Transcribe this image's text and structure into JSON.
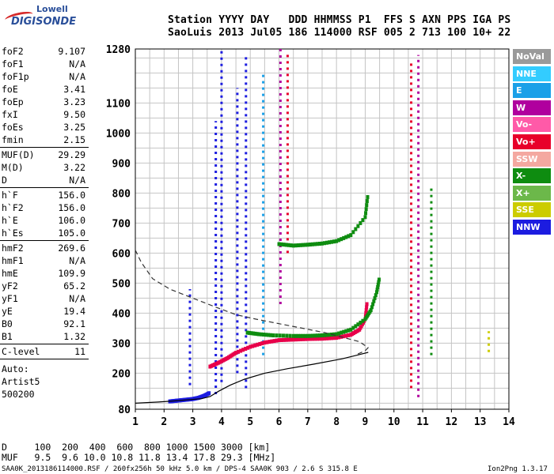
{
  "logo": {
    "line1": "Lowell",
    "line2": "DIGISONDE"
  },
  "header": {
    "line1": "Station YYYY DAY   DDD HHMMSS P1  FFS S AXN PPS IGA PS",
    "line2": "SaoLuis 2013 Jul05 186 114000 RSF 005 2 713 100 10+ 22"
  },
  "params": {
    "group1": [
      {
        "k": "foF2",
        "v": "9.107"
      },
      {
        "k": "foF1",
        "v": "N/A"
      },
      {
        "k": "foF1p",
        "v": "N/A"
      },
      {
        "k": "foE",
        "v": "3.41"
      },
      {
        "k": "foEp",
        "v": "3.23"
      },
      {
        "k": "fxI",
        "v": "9.50"
      },
      {
        "k": "foEs",
        "v": "3.25"
      },
      {
        "k": "fmin",
        "v": "2.15"
      }
    ],
    "group2": [
      {
        "k": "MUF(D)",
        "v": "29.29"
      },
      {
        "k": "M(D)",
        "v": "3.22"
      },
      {
        "k": "D",
        "v": "N/A"
      }
    ],
    "group3": [
      {
        "k": "h`F",
        "v": "156.0"
      },
      {
        "k": "h`F2",
        "v": "156.0"
      },
      {
        "k": "h`E",
        "v": "106.0"
      },
      {
        "k": "h`Es",
        "v": "105.0"
      }
    ],
    "group4": [
      {
        "k": "hmF2",
        "v": "269.6"
      },
      {
        "k": "hmF1",
        "v": "N/A"
      },
      {
        "k": "hmE",
        "v": "109.9"
      },
      {
        "k": "yF2",
        "v": "65.2"
      },
      {
        "k": "yF1",
        "v": "N/A"
      },
      {
        "k": "yE",
        "v": "19.4"
      },
      {
        "k": "B0",
        "v": "92.1"
      },
      {
        "k": "B1",
        "v": "1.32"
      }
    ],
    "group5": [
      {
        "k": "C-level",
        "v": "11"
      }
    ],
    "auto_lines": [
      "Auto:",
      "Artist5",
      "500200"
    ]
  },
  "legend": [
    {
      "label": "NoVal",
      "color": "#9a9a9a"
    },
    {
      "label": "NNE",
      "color": "#33ccff"
    },
    {
      "label": "E",
      "color": "#1aa0e8"
    },
    {
      "label": "W",
      "color": "#b0009e"
    },
    {
      "label": "Vo-",
      "color": "#ff5aa8"
    },
    {
      "label": "Vo+",
      "color": "#e8002a"
    },
    {
      "label": "SSW",
      "color": "#f4a8a0"
    },
    {
      "label": "X-",
      "color": "#0e8c10"
    },
    {
      "label": "X+",
      "color": "#6cb84a"
    },
    {
      "label": "SSE",
      "color": "#cccc00"
    },
    {
      "label": "NNW",
      "color": "#1c1ce0"
    }
  ],
  "footer": {
    "d_line": "D     100  200  400  600  800 1000 1500 3000 [km]",
    "muf_line": "MUF   9.5  9.6 10.0 10.8 11.8 13.4 17.8 29.3 [MHz]",
    "file_line": "SAA0K_2013186114000.RSF / 260fx256h 50 kHz 5.0 km / DPS-4 SAA0K 903 / 2.6 S 315.8 E",
    "version": "Ion2Png 1.3.17"
  },
  "chart_data": {
    "type": "scatter",
    "xlim": [
      1,
      14
    ],
    "ylim": [
      80,
      1280
    ],
    "xticks": [
      1,
      2,
      3,
      4,
      5,
      6,
      7,
      8,
      9,
      10,
      11,
      12,
      13,
      14
    ],
    "yticks": [
      80,
      200,
      300,
      400,
      500,
      600,
      700,
      800,
      900,
      1000,
      1100,
      1280
    ],
    "grid": true,
    "traces": [
      {
        "name": "O-trace F layer (virtual height)",
        "color": "#e8004a",
        "x": [
          3.6,
          3.9,
          4.2,
          4.5,
          5.0,
          5.5,
          6.0,
          6.5,
          7.0,
          7.5,
          8.0,
          8.5,
          8.8,
          9.0,
          9.07
        ],
        "y": [
          222,
          235,
          250,
          268,
          288,
          302,
          310,
          312,
          314,
          315,
          318,
          328,
          345,
          380,
          440
        ]
      },
      {
        "name": "X-trace F layer (virtual height)",
        "color": "#0e8c10",
        "x": [
          4.9,
          5.3,
          5.8,
          6.5,
          7.0,
          7.5,
          8.0,
          8.5,
          9.0,
          9.2,
          9.4,
          9.5
        ],
        "y": [
          335,
          330,
          326,
          324,
          324,
          326,
          330,
          345,
          380,
          410,
          470,
          520
        ]
      },
      {
        "name": "O-trace multihop",
        "color": "#0e8c10",
        "x": [
          6.0,
          6.5,
          7.0,
          7.5,
          8.0,
          8.5,
          9.0,
          9.1
        ],
        "y": [
          630,
          625,
          628,
          632,
          640,
          660,
          720,
          800
        ]
      },
      {
        "name": "E/Es trace",
        "color": "#1c1ce0",
        "x": [
          2.2,
          2.4,
          2.6,
          2.8,
          3.0,
          3.2,
          3.4,
          3.6
        ],
        "y": [
          106,
          108,
          110,
          112,
          114,
          118,
          125,
          135
        ]
      }
    ],
    "profile_solid": {
      "x": [
        1.0,
        1.8,
        2.4,
        2.9,
        3.3,
        3.6,
        3.9,
        4.3,
        4.8,
        5.5,
        6.3,
        7.2,
        8.2,
        8.8,
        9.107
      ],
      "y": [
        100,
        104,
        108,
        112,
        115,
        122,
        140,
        160,
        180,
        200,
        215,
        230,
        248,
        262,
        269.6
      ]
    },
    "profile_dashed": {
      "x": [
        1.0,
        1.2,
        1.6,
        2.2,
        3.0,
        3.8,
        4.5,
        5.2,
        6.0,
        6.8,
        7.6,
        8.2,
        8.8,
        9.1,
        9.0,
        8.7
      ],
      "y": [
        610,
        570,
        515,
        480,
        450,
        420,
        395,
        380,
        365,
        350,
        335,
        320,
        305,
        285,
        275,
        262
      ]
    },
    "spurs": [
      {
        "x": 2.9,
        "y0": 160,
        "y1": 480,
        "color": "#1c1ce0"
      },
      {
        "x": 3.8,
        "y0": 130,
        "y1": 1040,
        "color": "#1c1ce0"
      },
      {
        "x": 4.0,
        "y0": 170,
        "y1": 1280,
        "color": "#1c1ce0"
      },
      {
        "x": 4.55,
        "y0": 200,
        "y1": 1150,
        "color": "#1c1ce0"
      },
      {
        "x": 4.85,
        "y0": 150,
        "y1": 1260,
        "color": "#1c1ce0"
      },
      {
        "x": 5.45,
        "y0": 260,
        "y1": 1200,
        "color": "#1aa0e8"
      },
      {
        "x": 6.05,
        "y0": 430,
        "y1": 1280,
        "color": "#b0009e"
      },
      {
        "x": 6.3,
        "y0": 600,
        "y1": 1270,
        "color": "#e8002a"
      },
      {
        "x": 10.6,
        "y0": 150,
        "y1": 1240,
        "color": "#e8002a"
      },
      {
        "x": 10.85,
        "y0": 120,
        "y1": 1260,
        "color": "#b0009e"
      },
      {
        "x": 11.3,
        "y0": 260,
        "y1": 820,
        "color": "#0e8c10"
      },
      {
        "x": 13.3,
        "y0": 270,
        "y1": 340,
        "color": "#cccc00"
      }
    ]
  }
}
